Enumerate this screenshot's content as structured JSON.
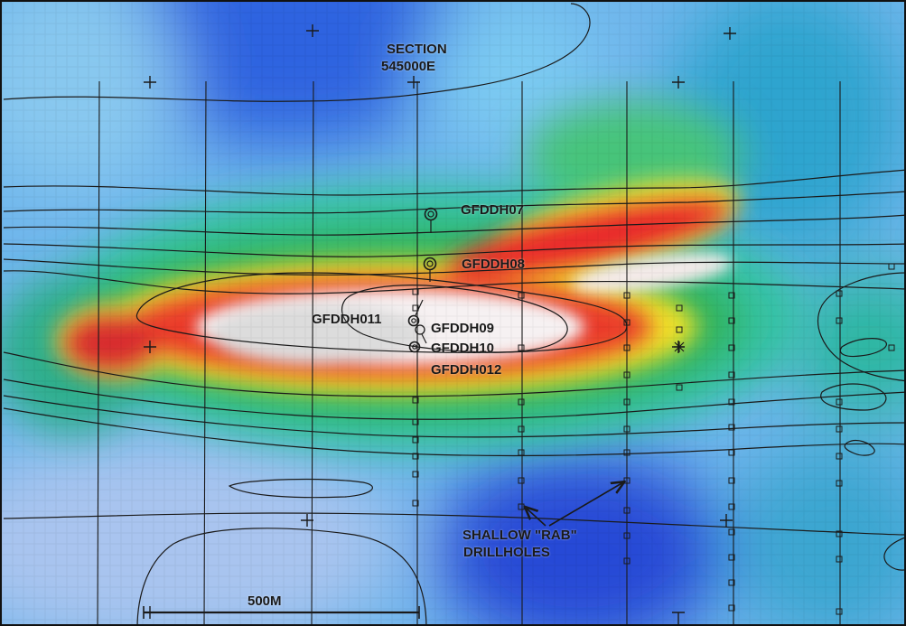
{
  "section_label": {
    "line1": "SECTION",
    "line2": "545000E"
  },
  "drillholes": [
    {
      "id": "h07",
      "label": "GFDDH07"
    },
    {
      "id": "h08",
      "label": "GFDDH08"
    },
    {
      "id": "h011",
      "label": "GFDDH011"
    },
    {
      "id": "h09",
      "label": "GFDDH09"
    },
    {
      "id": "h10",
      "label": "GFDDH10"
    },
    {
      "id": "h012",
      "label": "GFDDH012"
    }
  ],
  "rab_annotation": {
    "line1": "SHALLOW \"RAB\"",
    "line2": "DRILLHOLES"
  },
  "scale_bar": {
    "label": "500M"
  },
  "colors": {
    "low": "#1f3fd8",
    "mid_low": "#39b8e8",
    "mid": "#2fb37a",
    "mid_high": "#f2e400",
    "high": "#e8202a",
    "peak": "#ffffff",
    "contour": "#1a1a1a"
  }
}
